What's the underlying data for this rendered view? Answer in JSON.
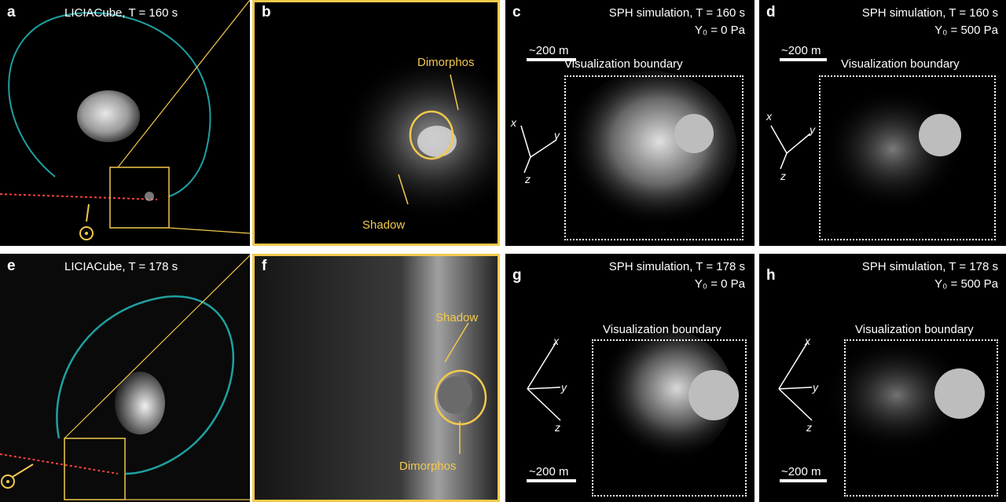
{
  "panels": {
    "a": {
      "letter": "a",
      "title": "LICIACube, T = 160 s"
    },
    "b": {
      "letter": "b",
      "label_target": "Dimorphos",
      "label_shadow": "Shadow"
    },
    "c": {
      "letter": "c",
      "title": "SPH simulation, T = 160 s",
      "param": "Y₀ = 0 Pa",
      "scale": "~200 m",
      "boundary": "Visualization boundary",
      "ax_x": "x",
      "ax_y": "y",
      "ax_z": "z"
    },
    "d": {
      "letter": "d",
      "title": "SPH simulation, T = 160 s",
      "param": "Y₀ = 500 Pa",
      "scale": "~200 m",
      "boundary": "Visualization boundary",
      "ax_x": "x",
      "ax_y": "y",
      "ax_z": "z"
    },
    "e": {
      "letter": "e",
      "title": "LICIACube, T = 178 s"
    },
    "f": {
      "letter": "f",
      "label_shadow": "Shadow",
      "label_target": "Dimorphos"
    },
    "g": {
      "letter": "g",
      "title": "SPH simulation, T = 178 s",
      "param": "Y₀ = 0 Pa",
      "scale": "~200 m",
      "boundary": "Visualization boundary",
      "ax_x": "x",
      "ax_y": "y",
      "ax_z": "z"
    },
    "h": {
      "letter": "h",
      "title": "SPH simulation, T = 178 s",
      "param": "Y₀ = 500 Pa",
      "scale": "~200 m",
      "boundary": "Visualization boundary",
      "ax_x": "x",
      "ax_y": "y",
      "ax_z": "z"
    }
  },
  "colors": {
    "highlight": "#f2c94c",
    "orbit": "#1fa0a0",
    "trajectory": "#ff4040"
  }
}
